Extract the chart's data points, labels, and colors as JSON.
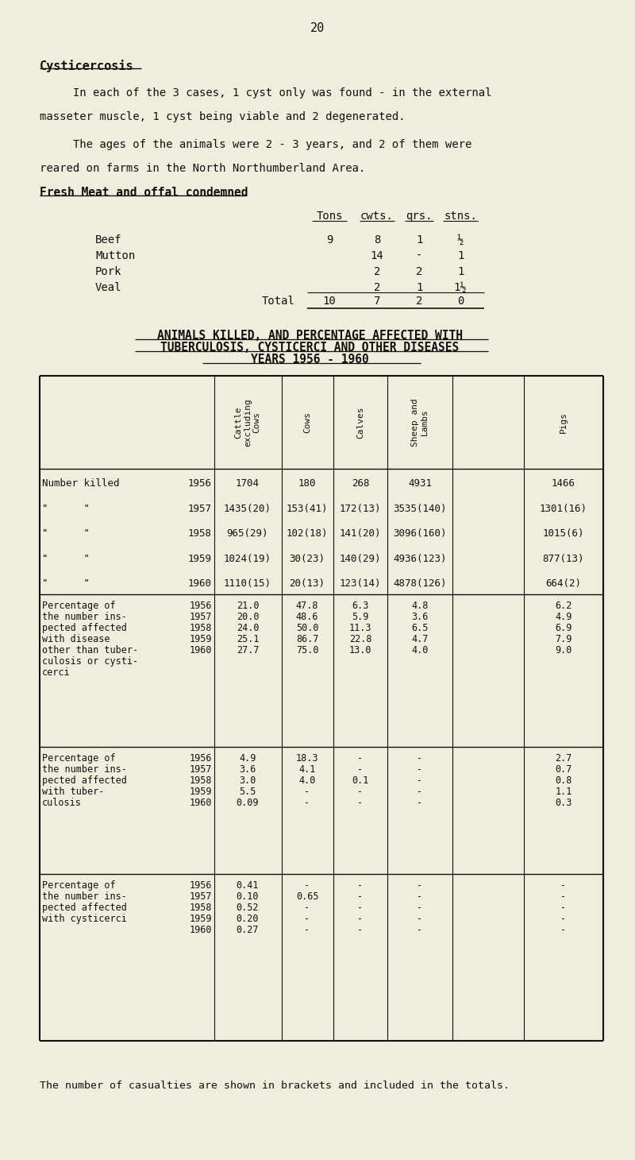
{
  "bg_color": "#eeeedd",
  "text_color": "#111111",
  "page_number": "20",
  "section_title": "Cysticercosis",
  "paragraph1": "     In each of the 3 cases, 1 cyst only was found - in the external",
  "paragraph1b": "masseter muscle, 1 cyst being viable and 2 degenerated.",
  "paragraph2": "     The ages of the animals were 2 - 3 years, and 2 of them were",
  "paragraph2b": "reared on farms in the North Northumberland Area.",
  "fresh_meat_title": "Fresh Meat and offal condemned",
  "fm_labels": [
    "Beef",
    "Mutton",
    "Pork",
    "Veal"
  ],
  "fm_tons": [
    "9",
    "",
    "",
    ""
  ],
  "fm_cwts": [
    "8",
    "14",
    "2",
    "2"
  ],
  "fm_qrs": [
    "1",
    "-",
    "2",
    "1"
  ],
  "fm_stns": [
    "½",
    "1",
    "1",
    "1½"
  ],
  "main_table_title1": "ANIMALS KILLED, AND PERCENTAGE AFFECTED WITH",
  "main_table_title2": "TUBERCULOSIS, CYSTICERCI AND OTHER DISEASES",
  "main_table_title3": "YEARS 1956 - 1960",
  "col_headers": [
    "Cattle\nexcluding\nCows",
    "Cows",
    "Calves",
    "Sheep and\nLambs",
    "Pigs"
  ],
  "s1_years": [
    "1956",
    "1957",
    "1958",
    "1959",
    "1960"
  ],
  "s1_data": [
    [
      "1704",
      "180",
      "268",
      "4931",
      "1466"
    ],
    [
      "1435(20)",
      "153(41)",
      "172(13)",
      "3535(140)",
      "1301(16)"
    ],
    [
      "965(29)",
      "102(18)",
      "141(20)",
      "3096(160)",
      "1015(6)"
    ],
    [
      "1024(19)",
      "30(23)",
      "140(29)",
      "4936(123)",
      "877(13)"
    ],
    [
      "1110(15)",
      "20(13)",
      "123(14)",
      "4878(126)",
      "664(2)"
    ]
  ],
  "s2_labels": [
    "Percentage of",
    "the number ins-",
    "pected affected",
    "with disease",
    "other than tuber-",
    "culosis or cysti-",
    "cerci"
  ],
  "s2_years": [
    "1956",
    "1957",
    "1958",
    "1959",
    "1960"
  ],
  "s2_data": [
    [
      "21.0",
      "47.8",
      "6.3",
      "4.8",
      "6.2"
    ],
    [
      "20.0",
      "48.6",
      "5.9",
      "3.6",
      "4.9"
    ],
    [
      "24.0",
      "50.0",
      "11.3",
      "6.5",
      "6.9"
    ],
    [
      "25.1",
      "86.7",
      "22.8",
      "4.7",
      "7.9"
    ],
    [
      "27.7",
      "75.0",
      "13.0",
      "4.0",
      "9.0"
    ]
  ],
  "s3_labels": [
    "Percentage of",
    "the number ins-",
    "pected affected",
    "with tuber-",
    "culosis"
  ],
  "s3_years": [
    "1956",
    "1957",
    "1958",
    "1959",
    "1960"
  ],
  "s3_data": [
    [
      "4.9",
      "18.3",
      "-",
      "-",
      "2.7"
    ],
    [
      "3.6",
      "4.1",
      "-",
      "-",
      "0.7"
    ],
    [
      "3.0",
      "4.0",
      "0.1",
      "-",
      "0.8"
    ],
    [
      "5.5",
      "-",
      "-",
      "-",
      "1.1"
    ],
    [
      "0.09",
      "-",
      "-",
      "-",
      "0.3"
    ]
  ],
  "s4_labels": [
    "Percentage of",
    "the number ins-",
    "pected affected",
    "with cysticerci"
  ],
  "s4_years": [
    "1956",
    "1957",
    "1958",
    "1959",
    "1960"
  ],
  "s4_data": [
    [
      "0.41",
      "-",
      "-",
      "-",
      "-"
    ],
    [
      "0.10",
      "0.65",
      "-",
      "-",
      "-"
    ],
    [
      "0.52",
      "-",
      "-",
      "-",
      "-"
    ],
    [
      "0.20",
      "-",
      "-",
      "-",
      "-"
    ],
    [
      "0.27",
      "-",
      "-",
      "-",
      "-"
    ]
  ],
  "footnote": "The number of casualties are shown in brackets and included in the totals."
}
